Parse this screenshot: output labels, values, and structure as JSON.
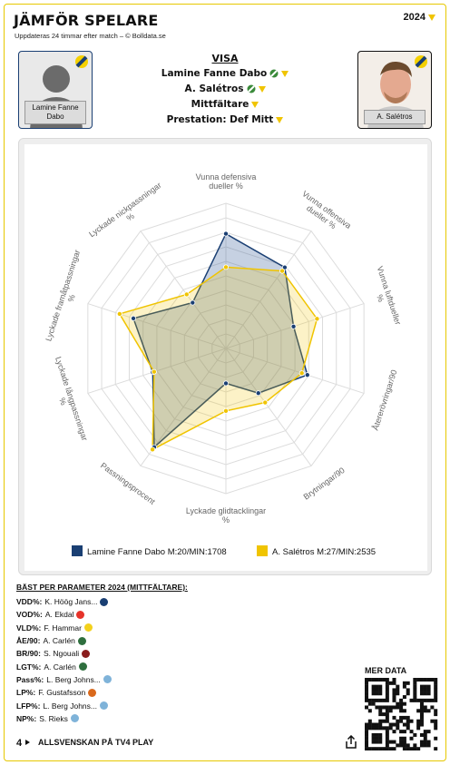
{
  "header": {
    "title": "JÄMFÖR SPELARE",
    "subtitle": "Uppdateras 24 timmar efter match – © Bolldata.se",
    "year": "2024"
  },
  "players": {
    "left": {
      "name": "Lamine Fanne Dabo",
      "color": "#1a3f73"
    },
    "right": {
      "name": "A. Salétros",
      "color": "#f0c400"
    }
  },
  "visa": {
    "heading": "VISA",
    "player1": "Lamine Fanne Dabo",
    "player2": "A. Salétros",
    "position": "Mittfältare",
    "prestation": "Prestation: Def Mitt"
  },
  "chart_data": {
    "type": "radar",
    "axes": [
      "Vunna defensiva dueller %",
      "Vunna offensiva dueller %",
      "Vunna luftdueller %",
      "Återerövringar/90",
      "Brytningar/90",
      "Lyckade glidtacklingar %",
      "Passningsprocent",
      "Lyckade långpassningar %",
      "Lyckade framåtpassningar %",
      "Lyckade nickpassningar %"
    ],
    "scale": [
      0,
      100
    ],
    "series": [
      {
        "name": "Lamine Fanne Dabo M:20/MIN:1708",
        "color": "#1a3f73",
        "values": [
          79,
          69,
          49,
          59,
          38,
          24,
          84,
          53,
          67,
          39
        ]
      },
      {
        "name": "A. Salétros M:27/MIN:2535",
        "color": "#f0c400",
        "values": [
          56,
          66,
          66,
          55,
          46,
          43,
          86,
          52,
          77,
          46
        ]
      }
    ],
    "legend": [
      "Lamine Fanne Dabo M:20/MIN:1708",
      "A. Salétros M:27/MIN:2535"
    ]
  },
  "best": {
    "heading": "BÄST PER PARAMETER 2024 (MITTFÄLTARE):",
    "items": [
      {
        "key": "VDD%:",
        "name": "K. Höög Jans...",
        "badge": "#1a3f73"
      },
      {
        "key": "VOD%:",
        "name": "A. Ekdal",
        "badge": "#e6332a"
      },
      {
        "key": "VLD%:",
        "name": "F. Hammar",
        "badge": "#f3d11c"
      },
      {
        "key": "ÅE/90:",
        "name": "A. Carlén",
        "badge": "#2f6f3e"
      },
      {
        "key": "BR/90:",
        "name": "S. Ngouali",
        "badge": "#8a1c1c"
      },
      {
        "key": "LGT%:",
        "name": "A. Carlén",
        "badge": "#2f6f3e"
      },
      {
        "key": "Pass%:",
        "name": "L. Berg Johns...",
        "badge": "#7fb3d9"
      },
      {
        "key": "LP%:",
        "name": "F. Gustafsson",
        "badge": "#d9691c"
      },
      {
        "key": "LFP%:",
        "name": "L. Berg Johns...",
        "badge": "#7fb3d9"
      },
      {
        "key": "NP%:",
        "name": "S. Rieks",
        "badge": "#7fb3d9"
      }
    ]
  },
  "mer_data": "MER DATA",
  "footer": {
    "text": "ALLSVENSKAN PÅ TV4 PLAY"
  }
}
